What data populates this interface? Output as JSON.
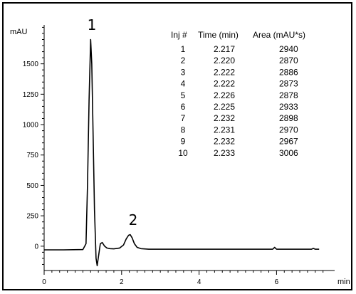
{
  "chart_data": {
    "type": "line",
    "ylabel": "mAU",
    "xlabel": "min",
    "xlim": [
      0,
      7.5
    ],
    "ylim": [
      -200,
      1820
    ],
    "xticks": [
      0,
      2,
      4,
      6
    ],
    "yticks": [
      0,
      250,
      500,
      750,
      1000,
      1250,
      1500
    ],
    "grid": false,
    "series": [
      {
        "x": [
          0,
          0.5,
          1.0,
          1.08,
          1.12,
          1.16,
          1.2,
          1.23,
          1.26,
          1.3,
          1.34,
          1.37,
          1.4,
          1.45,
          1.5,
          1.56,
          1.62,
          1.7,
          1.8,
          1.95,
          2.05,
          2.12,
          2.18,
          2.22,
          2.27,
          2.33,
          2.4,
          2.5,
          2.7,
          3.0,
          4.0,
          5.0,
          5.9,
          5.95,
          6.0,
          6.5,
          6.9,
          6.95,
          7.0,
          7.1
        ],
        "y": [
          -30,
          -30,
          -28,
          20,
          500,
          1200,
          1700,
          1500,
          1000,
          300,
          -100,
          -160,
          -90,
          20,
          30,
          0,
          -15,
          -20,
          -22,
          -15,
          10,
          60,
          90,
          95,
          70,
          20,
          -10,
          -20,
          -25,
          -25,
          -25,
          -25,
          -25,
          -10,
          -25,
          -25,
          -25,
          -18,
          -25,
          -25
        ]
      }
    ],
    "peak_labels": [
      "1",
      "2"
    ],
    "table": {
      "headers": [
        "Inj #",
        "Time (min)",
        "Area (mAU*s)"
      ],
      "rows": [
        [
          "1",
          "2.217",
          "2940"
        ],
        [
          "2",
          "2.220",
          "2870"
        ],
        [
          "3",
          "2.222",
          "2886"
        ],
        [
          "4",
          "2.222",
          "2873"
        ],
        [
          "5",
          "2.226",
          "2878"
        ],
        [
          "6",
          "2.225",
          "2933"
        ],
        [
          "7",
          "2.232",
          "2898"
        ],
        [
          "8",
          "2.231",
          "2970"
        ],
        [
          "9",
          "2.232",
          "2967"
        ],
        [
          "10",
          "2.233",
          "3006"
        ]
      ]
    }
  }
}
